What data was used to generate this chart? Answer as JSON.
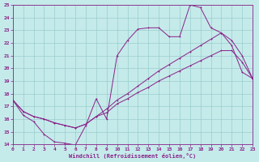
{
  "xlabel": "Windchill (Refroidissement éolien,°C)",
  "background_color": "#c5eaea",
  "grid_color": "#99cccc",
  "line_color": "#882288",
  "xlim": [
    0,
    23
  ],
  "ylim": [
    14,
    25
  ],
  "xticks": [
    0,
    1,
    2,
    3,
    4,
    5,
    6,
    7,
    8,
    9,
    10,
    11,
    12,
    13,
    14,
    15,
    16,
    17,
    18,
    19,
    20,
    21,
    22,
    23
  ],
  "yticks": [
    14,
    15,
    16,
    17,
    18,
    19,
    20,
    21,
    22,
    23,
    24,
    25
  ],
  "curve1_x": [
    0,
    1,
    2,
    3,
    4,
    5,
    6,
    7,
    8,
    9,
    10,
    11,
    12,
    13,
    14,
    15,
    16,
    17,
    18,
    19,
    20,
    21,
    22,
    23
  ],
  "curve1_y": [
    17.5,
    16.3,
    15.8,
    14.8,
    14.2,
    14.1,
    13.95,
    15.5,
    17.6,
    16.0,
    21.0,
    22.2,
    23.1,
    23.2,
    23.2,
    22.5,
    22.5,
    25.0,
    24.8,
    23.2,
    22.8,
    21.8,
    19.7,
    19.2
  ],
  "curve2_x": [
    0,
    1,
    2,
    3,
    4,
    5,
    6,
    7,
    8,
    9,
    10,
    11,
    12,
    13,
    14,
    15,
    16,
    17,
    18,
    19,
    20,
    21,
    22,
    23
  ],
  "curve2_y": [
    17.5,
    16.6,
    16.2,
    16.0,
    15.7,
    15.5,
    15.3,
    15.6,
    16.2,
    16.5,
    17.2,
    17.6,
    18.1,
    18.5,
    19.0,
    19.4,
    19.8,
    20.2,
    20.6,
    21.0,
    21.4,
    21.4,
    20.5,
    19.2
  ],
  "curve3_x": [
    0,
    1,
    2,
    3,
    4,
    5,
    6,
    7,
    8,
    9,
    10,
    11,
    12,
    13,
    14,
    15,
    16,
    17,
    18,
    19,
    20,
    21,
    22,
    23
  ],
  "curve3_y": [
    17.5,
    16.6,
    16.2,
    16.0,
    15.7,
    15.5,
    15.3,
    15.6,
    16.2,
    16.8,
    17.5,
    18.0,
    18.6,
    19.2,
    19.8,
    20.3,
    20.8,
    21.3,
    21.8,
    22.3,
    22.8,
    22.2,
    21.0,
    19.2
  ]
}
